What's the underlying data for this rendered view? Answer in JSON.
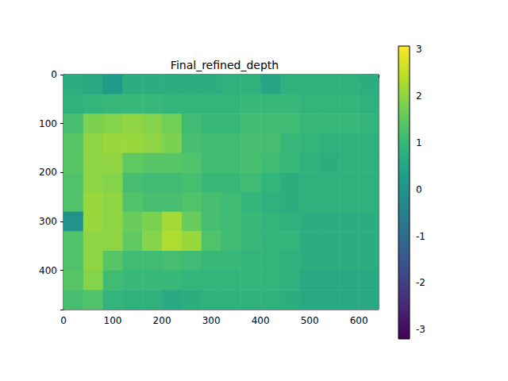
{
  "chart_data": {
    "type": "heatmap",
    "title": "Final_refined_depth",
    "x": [
      20,
      60,
      100,
      140,
      180,
      220,
      260,
      300,
      340,
      380,
      420,
      460,
      500,
      540,
      580,
      620
    ],
    "y": [
      20,
      60,
      100,
      140,
      180,
      220,
      260,
      300,
      340,
      380,
      420,
      460
    ],
    "cells": [
      [
        0.7,
        0.6,
        0.2,
        0.7,
        0.7,
        0.7,
        0.7,
        0.7,
        0.8,
        0.8,
        0.5,
        0.8,
        0.8,
        0.8,
        0.8,
        0.7
      ],
      [
        0.8,
        0.9,
        1.0,
        1.0,
        1.0,
        0.9,
        0.9,
        0.9,
        0.9,
        1.0,
        1.0,
        1.0,
        0.9,
        0.9,
        0.9,
        0.8
      ],
      [
        1.2,
        1.8,
        1.9,
        2.0,
        1.9,
        1.7,
        1.1,
        1.0,
        1.0,
        1.1,
        1.1,
        1.1,
        1.0,
        1.0,
        1.0,
        0.9
      ],
      [
        1.4,
        2.0,
        2.1,
        2.1,
        2.0,
        1.8,
        1.2,
        1.1,
        1.1,
        1.2,
        1.2,
        1.0,
        0.9,
        0.8,
        0.8,
        0.8
      ],
      [
        1.4,
        2.0,
        2.0,
        1.5,
        1.4,
        1.4,
        1.3,
        1.1,
        1.1,
        1.2,
        1.1,
        1.0,
        0.8,
        0.7,
        0.8,
        0.8
      ],
      [
        1.3,
        2.0,
        1.9,
        1.2,
        1.1,
        1.1,
        1.2,
        1.0,
        1.0,
        1.1,
        0.9,
        0.7,
        0.8,
        0.8,
        0.8,
        0.8
      ],
      [
        1.3,
        2.1,
        2.0,
        1.3,
        1.2,
        1.2,
        1.3,
        1.2,
        1.1,
        0.9,
        0.8,
        0.7,
        0.8,
        0.8,
        0.8,
        0.8
      ],
      [
        0.0,
        2.1,
        2.0,
        1.6,
        1.8,
        2.2,
        1.6,
        1.2,
        1.1,
        1.0,
        0.9,
        0.8,
        0.7,
        0.7,
        0.7,
        0.7
      ],
      [
        1.3,
        2.0,
        2.0,
        1.5,
        1.9,
        2.3,
        2.1,
        1.3,
        1.1,
        1.0,
        0.9,
        0.9,
        0.7,
        0.7,
        0.7,
        0.7
      ],
      [
        1.3,
        2.0,
        1.4,
        1.1,
        1.1,
        1.2,
        1.1,
        1.0,
        1.0,
        0.9,
        0.9,
        0.8,
        0.7,
        0.7,
        0.7,
        0.7
      ],
      [
        1.4,
        1.9,
        1.1,
        1.0,
        1.0,
        1.0,
        0.9,
        0.9,
        0.9,
        0.9,
        0.9,
        0.8,
        0.6,
        0.6,
        0.6,
        0.6
      ],
      [
        1.2,
        1.3,
        0.9,
        0.8,
        0.8,
        0.6,
        0.7,
        0.8,
        0.8,
        0.8,
        0.8,
        0.7,
        0.6,
        0.6,
        0.6,
        0.6
      ]
    ],
    "xlim": [
      0,
      640
    ],
    "xticks": [
      0,
      100,
      200,
      300,
      400,
      500,
      600
    ],
    "ylim": [
      480,
      0
    ],
    "yticks": [
      0,
      100,
      200,
      300,
      400
    ],
    "colorbar": {
      "range": [
        -3.2,
        3.07
      ],
      "ticks": [
        -3,
        -2,
        -1,
        0,
        1,
        2,
        3
      ]
    },
    "grid": false
  }
}
